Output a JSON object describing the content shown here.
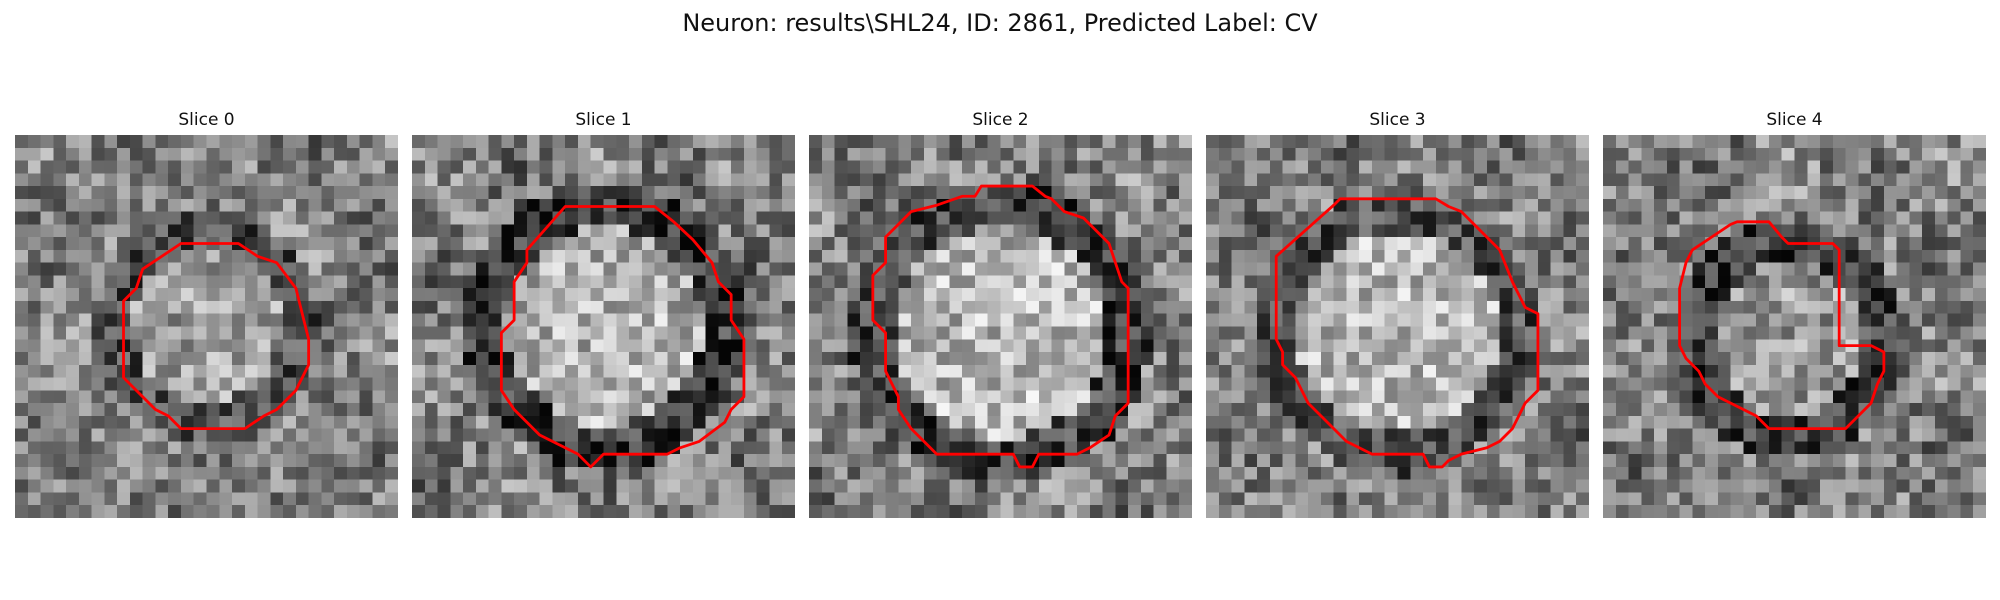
{
  "figure": {
    "title": "Neuron: results\\SHL24, ID: 2861, Predicted Label: CV",
    "contour_color": "#ff0000",
    "grid_size": 30
  },
  "panels": [
    {
      "label": "Slice 0",
      "blob": {
        "cx": 15.0,
        "cy": 15.0,
        "r": 6.8,
        "ring": 2.0,
        "inner": 0.62,
        "ring_level": 0.3,
        "contrast": 0.85,
        "seed": 11
      },
      "contour": [
        [
          13,
          8.5
        ],
        [
          17.5,
          8.5
        ],
        [
          19,
          9.5
        ],
        [
          20.5,
          10
        ],
        [
          22,
          12
        ],
        [
          22.5,
          14
        ],
        [
          23,
          16
        ],
        [
          23,
          18
        ],
        [
          22.5,
          19
        ],
        [
          22,
          20
        ],
        [
          20.5,
          21.5
        ],
        [
          19.5,
          22
        ],
        [
          18,
          23
        ],
        [
          13,
          23
        ],
        [
          12,
          22
        ],
        [
          11,
          21.5
        ],
        [
          9,
          19.5
        ],
        [
          8.5,
          19
        ],
        [
          8.5,
          13
        ],
        [
          9.5,
          12
        ],
        [
          10,
          10.5
        ]
      ]
    },
    {
      "label": "Slice 1",
      "blob": {
        "cx": 15.0,
        "cy": 15.0,
        "r": 8.8,
        "ring": 2.3,
        "inner": 0.7,
        "ring_level": 0.22,
        "contrast": 0.9,
        "seed": 23
      },
      "contour": [
        [
          12,
          5.6
        ],
        [
          19,
          5.6
        ],
        [
          20.5,
          6.8
        ],
        [
          22,
          8.2
        ],
        [
          23.5,
          10
        ],
        [
          24,
          11.5
        ],
        [
          25,
          12.5
        ],
        [
          25,
          14.5
        ],
        [
          26,
          16
        ],
        [
          26,
          20.5
        ],
        [
          25,
          21.5
        ],
        [
          24.5,
          22.5
        ],
        [
          22.5,
          24
        ],
        [
          21,
          24.5
        ],
        [
          20,
          25
        ],
        [
          15,
          25
        ],
        [
          14,
          26
        ],
        [
          13,
          25
        ],
        [
          12,
          24.5
        ],
        [
          10,
          23.5
        ],
        [
          8.5,
          22
        ],
        [
          8,
          21.5
        ],
        [
          7,
          20
        ],
        [
          7,
          15.5
        ],
        [
          8,
          14.5
        ],
        [
          8,
          11.5
        ],
        [
          9,
          10
        ],
        [
          9,
          9
        ]
      ]
    },
    {
      "label": "Slice 2",
      "blob": {
        "cx": 15.0,
        "cy": 15.5,
        "r": 9.4,
        "ring": 2.3,
        "inner": 0.72,
        "ring_level": 0.25,
        "contrast": 0.9,
        "seed": 37
      },
      "contour": [
        [
          12,
          4.8
        ],
        [
          13,
          4.8
        ],
        [
          13.5,
          4
        ],
        [
          17.5,
          4
        ],
        [
          18.5,
          4.8
        ],
        [
          19,
          5
        ],
        [
          20,
          6
        ],
        [
          21.5,
          6.5
        ],
        [
          23,
          8
        ],
        [
          23.5,
          8.5
        ],
        [
          24,
          10
        ],
        [
          24.5,
          11.5
        ],
        [
          25,
          12
        ],
        [
          25,
          21
        ],
        [
          24,
          22
        ],
        [
          23.5,
          23.5
        ],
        [
          22,
          24.5
        ],
        [
          21,
          25
        ],
        [
          18,
          25
        ],
        [
          17.5,
          26
        ],
        [
          16.5,
          26
        ],
        [
          16,
          25
        ],
        [
          10,
          25
        ],
        [
          9,
          24
        ],
        [
          8,
          23
        ],
        [
          7,
          21.5
        ],
        [
          7,
          20.5
        ],
        [
          6,
          18.5
        ],
        [
          6,
          15.5
        ],
        [
          5,
          14.5
        ],
        [
          5,
          11
        ],
        [
          6,
          10
        ],
        [
          6,
          8
        ],
        [
          8,
          6
        ],
        [
          10,
          5.5
        ]
      ]
    },
    {
      "label": "Slice 3",
      "blob": {
        "cx": 15.0,
        "cy": 15.5,
        "r": 9.0,
        "ring": 2.1,
        "inner": 0.72,
        "ring_level": 0.3,
        "contrast": 0.85,
        "seed": 53
      },
      "contour": [
        [
          10,
          5.5
        ],
        [
          10.5,
          5
        ],
        [
          18,
          5
        ],
        [
          19,
          5.6
        ],
        [
          20,
          6
        ],
        [
          21.5,
          7.5
        ],
        [
          22,
          8
        ],
        [
          23,
          9
        ],
        [
          24,
          11.5
        ],
        [
          25,
          13.5
        ],
        [
          26,
          14
        ],
        [
          26,
          20
        ],
        [
          25,
          21
        ],
        [
          24.5,
          22
        ],
        [
          24,
          23
        ],
        [
          23,
          24
        ],
        [
          22,
          24.5
        ],
        [
          20,
          25
        ],
        [
          19,
          25.5
        ],
        [
          18.5,
          26
        ],
        [
          17.5,
          26
        ],
        [
          17,
          25
        ],
        [
          13,
          25
        ],
        [
          12,
          24.5
        ],
        [
          11,
          24
        ],
        [
          10,
          23
        ],
        [
          8,
          21
        ],
        [
          7.5,
          20
        ],
        [
          7,
          19
        ],
        [
          6,
          18
        ],
        [
          6,
          17
        ],
        [
          5.5,
          16
        ],
        [
          5.5,
          9.5
        ]
      ]
    },
    {
      "label": "Slice 4",
      "blob": {
        "cx": 14.5,
        "cy": 16.0,
        "r": 7.0,
        "ring": 2.2,
        "inner": 0.6,
        "ring_level": 0.24,
        "contrast": 0.9,
        "seed": 71
      },
      "contour": [
        [
          10,
          7
        ],
        [
          10.5,
          6.8
        ],
        [
          13,
          6.8
        ],
        [
          14,
          8
        ],
        [
          14.5,
          8.5
        ],
        [
          18,
          8.5
        ],
        [
          18.5,
          9
        ],
        [
          18.5,
          16.5
        ],
        [
          19,
          16.5
        ],
        [
          21,
          16.5
        ],
        [
          22,
          17
        ],
        [
          22,
          18.5
        ],
        [
          21.5,
          19.5
        ],
        [
          21,
          21
        ],
        [
          20,
          22
        ],
        [
          19,
          23
        ],
        [
          18,
          23
        ],
        [
          13,
          23
        ],
        [
          12,
          22
        ],
        [
          11,
          21.5
        ],
        [
          10,
          21
        ],
        [
          9,
          20.5
        ],
        [
          8,
          19.5
        ],
        [
          7.5,
          18.5
        ],
        [
          6.5,
          17.5
        ],
        [
          6,
          16.5
        ],
        [
          6,
          12
        ],
        [
          6.5,
          10
        ],
        [
          7,
          9
        ]
      ]
    }
  ]
}
